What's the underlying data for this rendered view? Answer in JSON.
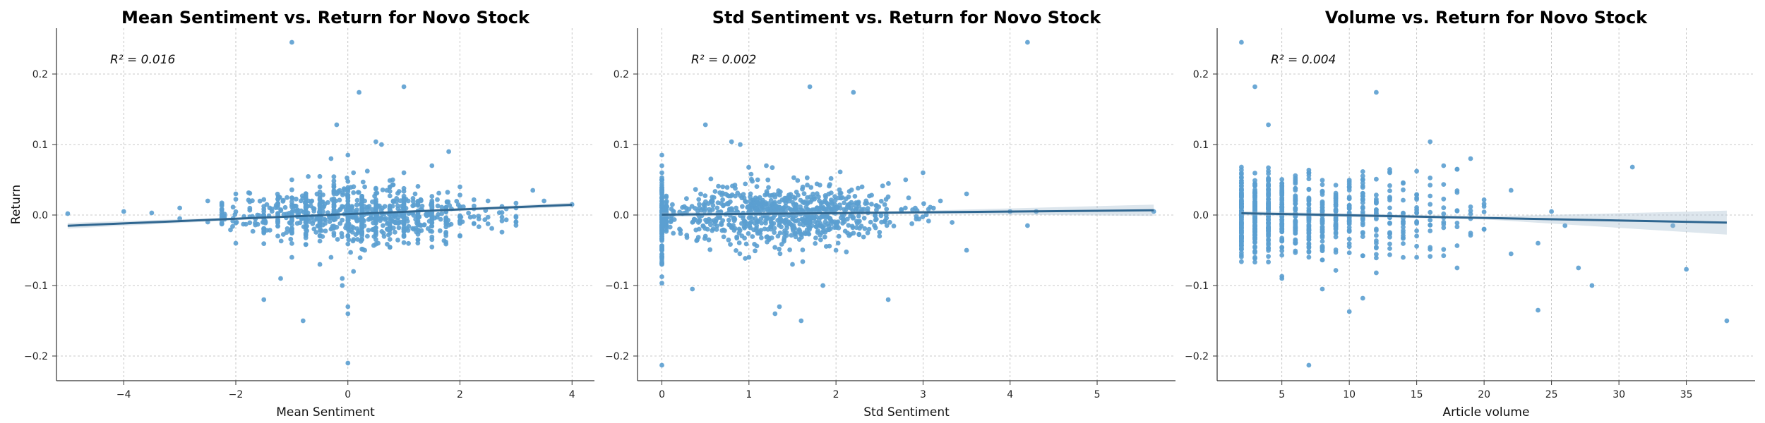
{
  "colors": {
    "point": "#5b9fd0",
    "line": "#2f6690",
    "band": "#9fb7cc",
    "grid": "#b8b8b8",
    "axis": "#333333"
  },
  "chart_data": [
    {
      "type": "scatter",
      "title": "Mean Sentiment vs. Return for Novo Stock",
      "xlabel": "Mean Sentiment",
      "ylabel": "Return",
      "annotation": "R² = 0.016",
      "xlim": [
        -5.2,
        4.4
      ],
      "ylim": [
        -0.235,
        0.265
      ],
      "xticks": [
        -4,
        -2,
        0,
        2,
        4
      ],
      "xticklabels": [
        "−4",
        "−2",
        "0",
        "2",
        "4"
      ],
      "yticks": [
        -0.2,
        -0.1,
        0.0,
        0.1,
        0.2
      ],
      "yticklabels": [
        "−0.2",
        "−0.1",
        "0.0",
        "0.1",
        "0.2"
      ],
      "grid": true,
      "regression": {
        "slope": 0.0033,
        "intercept": 0.0013,
        "x_range": [
          -5,
          4
        ],
        "ci_halfwidth": [
          0.004,
          0.001,
          0.003
        ]
      },
      "points": [
        [
          -5.0,
          0.002
        ],
        [
          -4.0,
          0.005
        ],
        [
          -3.5,
          0.003
        ],
        [
          -3.0,
          -0.005
        ],
        [
          -3.0,
          0.01
        ],
        [
          -2.5,
          -0.01
        ],
        [
          -2.5,
          0.02
        ],
        [
          -2.0,
          -0.04
        ],
        [
          -2.0,
          0.03
        ],
        [
          -1.5,
          -0.02
        ],
        [
          -1.5,
          -0.12
        ],
        [
          -1.2,
          -0.09
        ],
        [
          -1.0,
          0.245
        ],
        [
          -1.0,
          0.05
        ],
        [
          -1.0,
          -0.06
        ],
        [
          -0.8,
          -0.15
        ],
        [
          -0.5,
          0.04
        ],
        [
          -0.5,
          -0.07
        ],
        [
          -0.3,
          0.08
        ],
        [
          -0.3,
          -0.06
        ],
        [
          -0.2,
          0.128
        ],
        [
          -0.2,
          0.03
        ],
        [
          -0.1,
          -0.09
        ],
        [
          -0.1,
          -0.1
        ],
        [
          0.0,
          0.085
        ],
        [
          0.0,
          -0.21
        ],
        [
          0.0,
          -0.13
        ],
        [
          0.0,
          -0.14
        ],
        [
          0.1,
          0.06
        ],
        [
          0.1,
          -0.08
        ],
        [
          0.2,
          0.174
        ],
        [
          0.3,
          0.04
        ],
        [
          0.3,
          -0.05
        ],
        [
          0.5,
          0.104
        ],
        [
          0.6,
          0.1
        ],
        [
          0.8,
          0.05
        ],
        [
          1.0,
          0.182
        ],
        [
          1.0,
          0.06
        ],
        [
          1.2,
          0.03
        ],
        [
          1.5,
          0.07
        ],
        [
          1.8,
          0.09
        ],
        [
          2.0,
          0.04
        ],
        [
          2.0,
          -0.03
        ],
        [
          2.5,
          0.02
        ],
        [
          3.0,
          0.01
        ],
        [
          3.0,
          -0.01
        ],
        [
          3.3,
          0.035
        ],
        [
          3.5,
          0.02
        ],
        [
          4.0,
          0.015
        ],
        [
          0.0,
          0.0
        ],
        [
          0.5,
          0.01
        ],
        [
          -0.5,
          -0.01
        ],
        [
          1.0,
          0.0
        ],
        [
          -1.0,
          0.0
        ],
        [
          1.5,
          0.01
        ],
        [
          -1.5,
          0.0
        ],
        [
          0.3,
          0.02
        ],
        [
          -0.3,
          -0.02
        ],
        [
          0.7,
          -0.02
        ],
        [
          -0.7,
          0.02
        ]
      ],
      "cloud": {
        "x_center": 0.2,
        "x_spread": 1.1,
        "y_spread": 0.022,
        "count": 900,
        "seed": 11,
        "x_min": -2.2,
        "x_max": 3.0
      }
    },
    {
      "type": "scatter",
      "title": "Std Sentiment vs. Return for Novo Stock",
      "xlabel": "Std Sentiment",
      "ylabel": "",
      "annotation": "R² = 0.002",
      "xlim": [
        -0.28,
        5.9
      ],
      "ylim": [
        -0.235,
        0.265
      ],
      "xticks": [
        0,
        1,
        2,
        3,
        4,
        5
      ],
      "xticklabels": [
        "0",
        "1",
        "2",
        "3",
        "4",
        "5"
      ],
      "yticks": [
        -0.2,
        -0.1,
        0.0,
        0.1,
        0.2
      ],
      "yticklabels": [
        "−0.2",
        "−0.1",
        "0.0",
        "0.1",
        "0.2"
      ],
      "grid": true,
      "regression": {
        "slope": 0.0011,
        "intercept": 0.0005,
        "x_range": [
          0,
          5.65
        ],
        "ci_halfwidth": [
          0.003,
          0.002,
          0.008
        ]
      },
      "points": [
        [
          0.0,
          0.085
        ],
        [
          0.0,
          -0.213
        ],
        [
          0.0,
          -0.07
        ],
        [
          0.0,
          0.06
        ],
        [
          0.0,
          -0.05
        ],
        [
          0.35,
          -0.105
        ],
        [
          0.5,
          0.128
        ],
        [
          0.8,
          0.104
        ],
        [
          0.9,
          0.1
        ],
        [
          1.2,
          0.07
        ],
        [
          1.3,
          -0.14
        ],
        [
          1.35,
          -0.13
        ],
        [
          1.6,
          -0.15
        ],
        [
          1.7,
          0.182
        ],
        [
          1.85,
          -0.1
        ],
        [
          2.2,
          0.174
        ],
        [
          2.6,
          -0.12
        ],
        [
          2.8,
          0.05
        ],
        [
          3.0,
          0.06
        ],
        [
          3.5,
          0.03
        ],
        [
          3.5,
          -0.05
        ],
        [
          4.0,
          0.005
        ],
        [
          4.2,
          0.245
        ],
        [
          4.2,
          -0.015
        ],
        [
          4.3,
          0.005
        ],
        [
          5.65,
          0.005
        ],
        [
          1.0,
          -0.06
        ],
        [
          1.5,
          -0.07
        ],
        [
          2.0,
          -0.05
        ],
        [
          2.5,
          -0.03
        ],
        [
          0.5,
          -0.03
        ],
        [
          0.7,
          0.04
        ],
        [
          1.1,
          0.05
        ],
        [
          2.3,
          0.04
        ],
        [
          3.2,
          0.02
        ]
      ],
      "cloud": {
        "x_center": 1.3,
        "x_spread": 0.7,
        "y_spread": 0.022,
        "count": 800,
        "seed": 23,
        "x_min": 0.05,
        "x_max": 3.55
      },
      "column": {
        "x": 0.0,
        "y_spread": 0.03,
        "count": 120,
        "seed": 5
      }
    },
    {
      "type": "scatter",
      "title": "Volume vs. Return for Novo Stock",
      "xlabel": "Article volume",
      "ylabel": "",
      "annotation": "R² = 0.004",
      "xlim": [
        0.2,
        40.1
      ],
      "ylim": [
        -0.235,
        0.265
      ],
      "xticks": [
        5,
        10,
        15,
        20,
        25,
        30,
        35
      ],
      "xticklabels": [
        "5",
        "10",
        "15",
        "20",
        "25",
        "30",
        "35"
      ],
      "yticks": [
        -0.2,
        -0.1,
        0.0,
        0.1,
        0.2
      ],
      "yticklabels": [
        "−0.2",
        "−0.1",
        "0.0",
        "0.1",
        "0.2"
      ],
      "grid": true,
      "regression": {
        "slope": -0.00037,
        "intercept": 0.0033,
        "x_range": [
          2,
          38
        ],
        "ci_halfwidth": [
          0.003,
          0.002,
          0.017
        ]
      },
      "points": [
        [
          2,
          0.245
        ],
        [
          3,
          0.182
        ],
        [
          4,
          0.128
        ],
        [
          7,
          -0.213
        ],
        [
          12,
          0.174
        ],
        [
          10,
          -0.137
        ],
        [
          11,
          -0.118
        ],
        [
          8,
          -0.105
        ],
        [
          5,
          -0.09
        ],
        [
          16,
          0.104
        ],
        [
          17,
          0.07
        ],
        [
          18,
          0.065
        ],
        [
          19,
          0.08
        ],
        [
          20,
          -0.02
        ],
        [
          22,
          0.035
        ],
        [
          22,
          -0.055
        ],
        [
          24,
          -0.135
        ],
        [
          24,
          -0.04
        ],
        [
          25,
          0.005
        ],
        [
          26,
          -0.015
        ],
        [
          27,
          -0.075
        ],
        [
          28,
          -0.1
        ],
        [
          31,
          0.068
        ],
        [
          34,
          -0.015
        ],
        [
          35,
          -0.077
        ],
        [
          38,
          -0.15
        ],
        [
          18,
          -0.075
        ],
        [
          15,
          -0.06
        ],
        [
          13,
          0.06
        ],
        [
          14,
          0.045
        ]
      ],
      "columns": {
        "x_values": [
          2,
          3,
          4,
          5,
          6,
          7,
          8,
          9,
          10,
          11,
          12,
          13,
          14,
          15,
          16,
          17,
          18,
          19,
          20
        ],
        "y_spread": 0.028,
        "per_col": [
          130,
          110,
          90,
          70,
          60,
          55,
          45,
          40,
          35,
          30,
          25,
          20,
          18,
          15,
          12,
          10,
          8,
          6,
          5
        ],
        "seed": 37
      }
    }
  ]
}
